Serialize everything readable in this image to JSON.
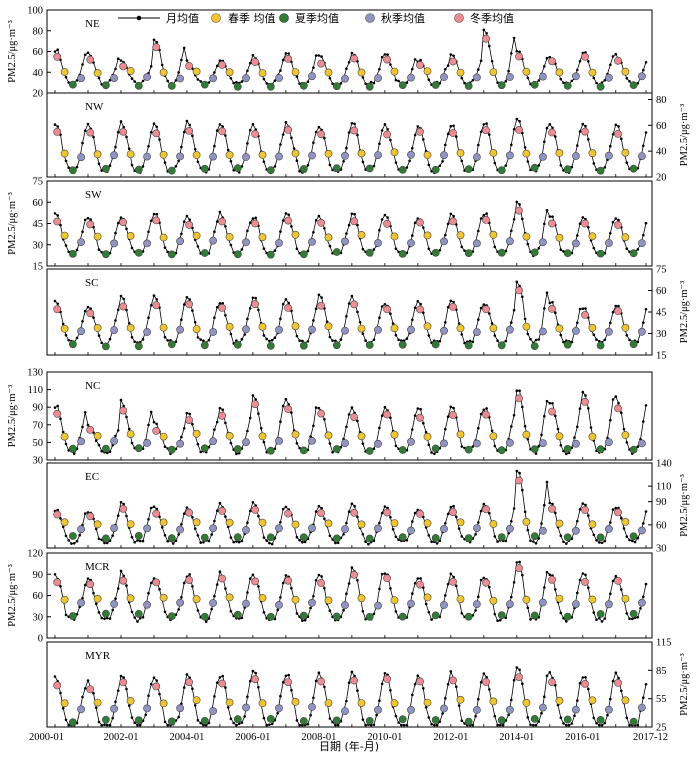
{
  "colors": {
    "line": "#000000",
    "spring": "#f2c52a",
    "summer": "#2e7d32",
    "autumn": "#8f94c4",
    "winter": "#f08b92"
  },
  "legend": {
    "monthly": "月均值",
    "spring": "春季 均值",
    "summer": "夏季均值",
    "autumn": "秋季均值",
    "winter": "冬季均值"
  },
  "x_axis_label": "日期 (年-月)",
  "chart_data": {
    "type": "line",
    "x_range": [
      "2000-01",
      "2017-12"
    ],
    "x_ticks": [
      "2000-01",
      "2002-01",
      "2004-01",
      "2006-01",
      "2008-01",
      "2010-01",
      "2012-01",
      "2014-01",
      "2016-01",
      "2017-12"
    ],
    "y_unit_label": "PM2.5/μg·m⁻³",
    "panels": [
      {
        "name": "NE",
        "ylim": [
          20,
          100
        ],
        "yticks": [
          20,
          40,
          60,
          80,
          100
        ],
        "axis_side": "left",
        "base": 36,
        "amp": 20,
        "peaks": [
          62,
          58,
          50,
          72,
          50,
          52,
          55,
          60,
          55,
          58,
          57,
          52,
          56,
          80,
          60,
          55,
          60,
          56
        ],
        "seasonal_means": {
          "spring": 40,
          "summer": 27,
          "autumn": 35,
          "winter": 58
        }
      },
      {
        "name": "NW",
        "ylim": [
          20,
          85
        ],
        "yticks": [
          20,
          40,
          60,
          80
        ],
        "axis_side": "right",
        "base": 32,
        "amp": 20,
        "peaks": [
          62,
          60,
          62,
          60,
          62,
          62,
          60,
          62,
          60,
          62,
          60,
          60,
          60,
          62,
          64,
          60,
          60,
          60
        ],
        "seasonal_means": {
          "spring": 38,
          "summer": 26,
          "autumn": 36,
          "winter": 60
        }
      },
      {
        "name": "SW",
        "ylim": [
          15,
          75
        ],
        "yticks": [
          15,
          30,
          45,
          60,
          75
        ],
        "axis_side": "left",
        "base": 30,
        "amp": 18,
        "peaks": [
          52,
          50,
          50,
          52,
          50,
          52,
          50,
          52,
          50,
          52,
          50,
          50,
          52,
          52,
          60,
          50,
          50,
          50
        ],
        "seasonal_means": {
          "spring": 36,
          "summer": 24,
          "autumn": 32,
          "winter": 48
        }
      },
      {
        "name": "SC",
        "ylim": [
          15,
          75
        ],
        "yticks": [
          15,
          30,
          45,
          60,
          75
        ],
        "axis_side": "right",
        "base": 30,
        "amp": 18,
        "peaks": [
          52,
          50,
          55,
          56,
          55,
          52,
          56,
          54,
          56,
          55,
          52,
          52,
          54,
          52,
          66,
          52,
          48,
          50
        ],
        "seasonal_means": {
          "spring": 34,
          "summer": 22,
          "autumn": 32,
          "winter": 50
        }
      },
      {
        "name": "NC",
        "ylim": [
          30,
          130
        ],
        "yticks": [
          30,
          50,
          70,
          90,
          110,
          130
        ],
        "axis_side": "left",
        "base": 50,
        "amp": 30,
        "peaks": [
          92,
          70,
          96,
          72,
          82,
          88,
          102,
          98,
          90,
          88,
          90,
          88,
          92,
          90,
          112,
          96,
          108,
          100
        ],
        "seasonal_means": {
          "spring": 58,
          "summer": 42,
          "autumn": 50,
          "winter": 88
        }
      },
      {
        "name": "EC",
        "ylim": [
          30,
          140
        ],
        "yticks": [
          30,
          60,
          90,
          110,
          140
        ],
        "axis_side": "right",
        "base": 48,
        "amp": 30,
        "peaks": [
          80,
          78,
          88,
          82,
          84,
          86,
          88,
          84,
          82,
          86,
          84,
          82,
          84,
          88,
          130,
          88,
          86,
          84
        ],
        "seasonal_means": {
          "spring": 62,
          "summer": 44,
          "autumn": 54,
          "winter": 84
        }
      },
      {
        "name": "MCR",
        "ylim": [
          0,
          120
        ],
        "yticks": [
          0,
          30,
          60,
          90,
          120
        ],
        "axis_side": "left",
        "base": 40,
        "amp": 40,
        "peaks": [
          88,
          82,
          92,
          86,
          90,
          92,
          90,
          90,
          88,
          100,
          92,
          86,
          90,
          88,
          110,
          90,
          90,
          88
        ],
        "seasonal_means": {
          "spring": 55,
          "summer": 32,
          "autumn": 48,
          "winter": 84
        }
      },
      {
        "name": "MYR",
        "ylim": [
          25,
          115
        ],
        "yticks": [
          25,
          55,
          85,
          115
        ],
        "axis_side": "right",
        "base": 38,
        "amp": 36,
        "peaks": [
          78,
          72,
          82,
          76,
          80,
          80,
          84,
          82,
          80,
          82,
          82,
          80,
          82,
          82,
          88,
          82,
          80,
          80
        ],
        "seasonal_means": {
          "spring": 52,
          "summer": 32,
          "autumn": 44,
          "winter": 78
        }
      }
    ]
  }
}
